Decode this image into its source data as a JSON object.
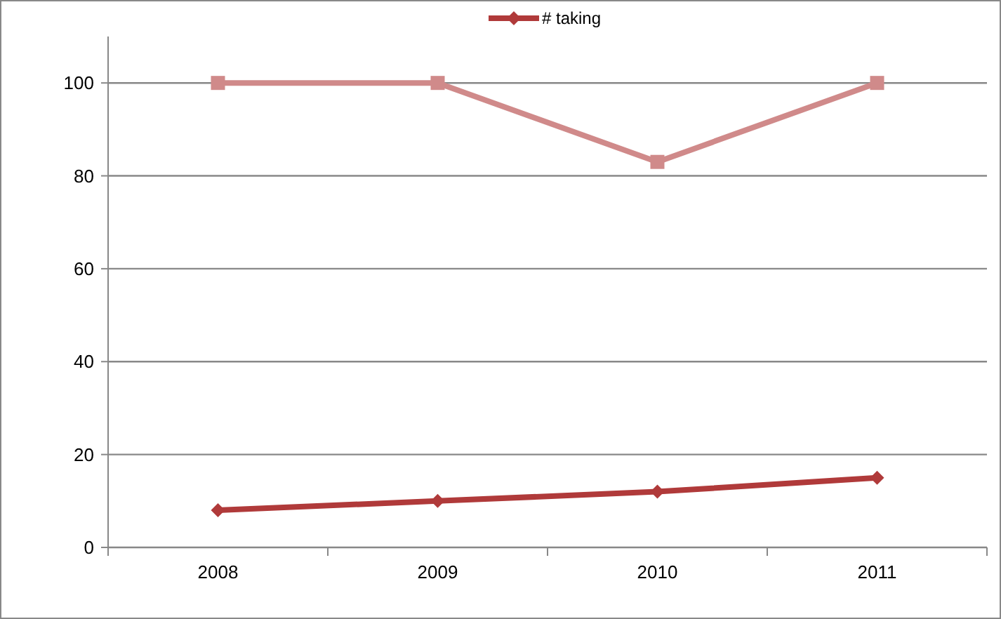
{
  "chart_data": {
    "type": "line",
    "categories": [
      "2008",
      "2009",
      "2010",
      "2011"
    ],
    "series": [
      {
        "color": "#d08a8a",
        "values": [
          100,
          100,
          83,
          100
        ],
        "marker": "square"
      },
      {
        "name": "# taking",
        "color": "#b03a3a",
        "values": [
          8,
          10,
          12,
          15
        ],
        "marker": "diamond"
      }
    ],
    "ylim": [
      0,
      110
    ],
    "yticks": [
      0,
      20,
      40,
      60,
      80,
      100
    ],
    "grid": "y",
    "legend": "top"
  }
}
